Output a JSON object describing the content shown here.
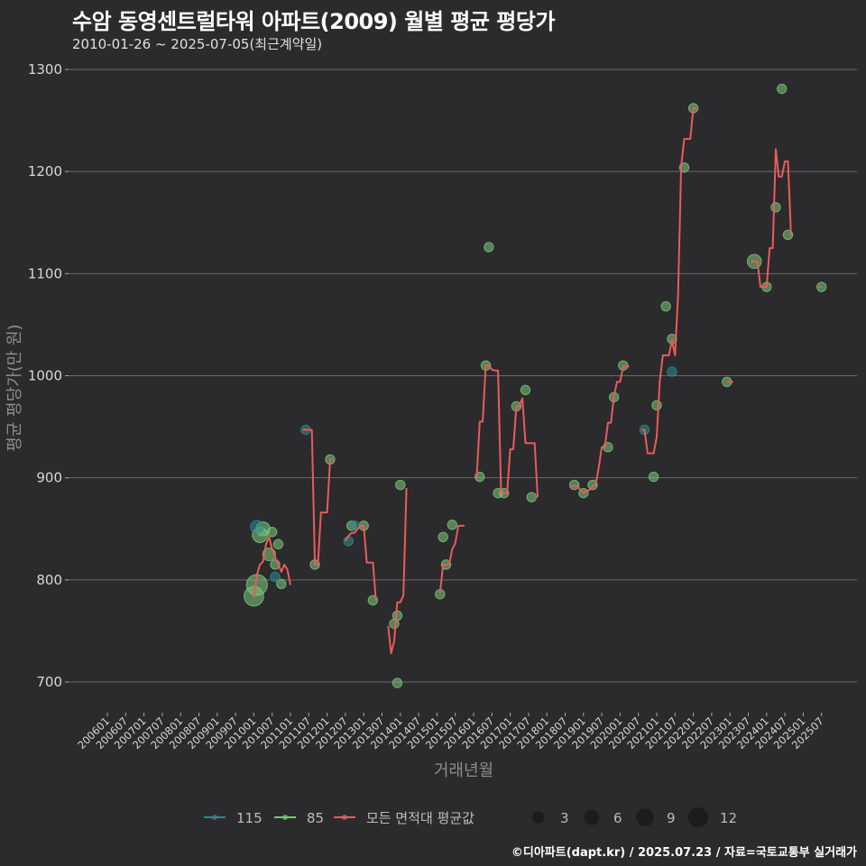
{
  "header": {
    "title": "수암 동영센트럴타워 아파트(2009) 월별 평균 평당가",
    "subtitle": "2010-01-26 ~ 2025-07-05(최근계약일)"
  },
  "caption": "©디아파트(dapt.kr) / 2025.07.23 / 자료=국토교통부 실거래가",
  "colors": {
    "background": "#2b2a2c",
    "grid": "#6a6a6a",
    "series_115": "#2e8b8b",
    "series_85": "#7cc87c",
    "avg_line": "#e85c5c"
  },
  "chart_data": {
    "type": "line",
    "title": "수암 동영센트럴타워 아파트(2009) 월별 평균 평당가",
    "subtitle": "2010-01-26 ~ 2025-07-05(최근계약일)",
    "xlabel": "거래년월",
    "ylabel": "평균 평당가(만 원)",
    "ylim": [
      690,
      1300
    ],
    "yticks": [
      700,
      800,
      900,
      1000,
      1100,
      1200,
      1300
    ],
    "grid": true,
    "legend_position": "bottom",
    "x_ticks": [
      "200601",
      "200607",
      "200701",
      "200707",
      "200801",
      "200807",
      "200901",
      "200907",
      "201001",
      "201007",
      "201101",
      "201107",
      "201201",
      "201207",
      "201301",
      "201307",
      "201401",
      "201407",
      "201501",
      "201507",
      "201601",
      "201607",
      "201701",
      "201707",
      "201801",
      "201807",
      "201901",
      "201907",
      "202001",
      "202007",
      "202101",
      "202107",
      "202201",
      "202207",
      "202301",
      "202307",
      "202401",
      "202407",
      "202501",
      "202507"
    ],
    "legend": {
      "series": [
        "115",
        "85",
        "모든 면적대 평균값"
      ],
      "size_title": "",
      "sizes": [
        3,
        6,
        9,
        12
      ]
    },
    "series": [
      {
        "name": "모든 면적대 평균값",
        "kind": "line",
        "segments": [
          [
            [
              "2010-01",
              782
            ],
            [
              "2010-02",
              805
            ],
            [
              "2010-03",
              815
            ],
            [
              "2010-04",
              818
            ],
            [
              "2010-05",
              835
            ],
            [
              "2010-06",
              842
            ],
            [
              "2010-07",
              830
            ],
            [
              "2010-08",
              822
            ],
            [
              "2010-09",
              815
            ],
            [
              "2010-10",
              808
            ],
            [
              "2010-11",
              815
            ],
            [
              "2010-12",
              810
            ],
            [
              "2011-01",
              795
            ]
          ],
          [
            [
              "2011-05",
              947
            ],
            [
              "2011-06",
              947
            ],
            [
              "2011-07",
              947
            ],
            [
              "2011-08",
              947
            ],
            [
              "2011-09",
              815
            ],
            [
              "2011-10",
              815
            ],
            [
              "2011-11",
              866
            ],
            [
              "2011-12",
              866
            ],
            [
              "2012-01",
              866
            ],
            [
              "2012-02",
              918
            ],
            [
              "2012-03",
              918
            ]
          ],
          [
            [
              "2012-07",
              838
            ],
            [
              "2012-08",
              843
            ],
            [
              "2012-09",
              846
            ],
            [
              "2012-10",
              846
            ],
            [
              "2012-11",
              850
            ],
            [
              "2012-12",
              853
            ],
            [
              "2013-01",
              853
            ],
            [
              "2013-02",
              817
            ],
            [
              "2013-03",
              817
            ],
            [
              "2013-04",
              817
            ],
            [
              "2013-05",
              780
            ]
          ],
          [
            [
              "2013-09",
              755
            ],
            [
              "2013-10",
              728
            ],
            [
              "2013-11",
              740
            ],
            [
              "2013-12",
              778
            ],
            [
              "2014-01",
              778
            ],
            [
              "2014-02",
              785
            ],
            [
              "2014-03",
              890
            ]
          ],
          [
            [
              "2015-02",
              787
            ],
            [
              "2015-03",
              815
            ],
            [
              "2015-04",
              815
            ],
            [
              "2015-05",
              815
            ],
            [
              "2015-06",
              830
            ],
            [
              "2015-07",
              836
            ],
            [
              "2015-08",
              853
            ],
            [
              "2015-09",
              853
            ],
            [
              "2015-10",
              853
            ]
          ],
          [
            [
              "2016-02",
              900
            ],
            [
              "2016-03",
              955
            ],
            [
              "2016-04",
              955
            ],
            [
              "2016-05",
              1010
            ],
            [
              "2016-06",
              1010
            ],
            [
              "2016-07",
              1006
            ],
            [
              "2016-08",
              1005
            ],
            [
              "2016-09",
              1005
            ],
            [
              "2016-10",
              885
            ],
            [
              "2016-11",
              885
            ],
            [
              "2016-12",
              885
            ],
            [
              "2017-01",
              928
            ],
            [
              "2017-02",
              928
            ],
            [
              "2017-03",
              970
            ],
            [
              "2017-04",
              970
            ],
            [
              "2017-05",
              978
            ],
            [
              "2017-06",
              934
            ],
            [
              "2017-07",
              934
            ],
            [
              "2017-08",
              934
            ],
            [
              "2017-09",
              934
            ],
            [
              "2017-10",
              881
            ]
          ],
          [
            [
              "2018-09",
              892
            ],
            [
              "2018-10",
              892
            ],
            [
              "2018-11",
              892
            ],
            [
              "2018-12",
              888
            ],
            [
              "2019-01",
              885
            ],
            [
              "2019-02",
              887
            ],
            [
              "2019-03",
              888
            ],
            [
              "2019-04",
              892
            ],
            [
              "2019-05",
              893
            ],
            [
              "2019-06",
              910
            ],
            [
              "2019-07",
              930
            ],
            [
              "2019-08",
              930
            ],
            [
              "2019-09",
              954
            ],
            [
              "2019-10",
              954
            ],
            [
              "2019-11",
              980
            ],
            [
              "2019-12",
              994
            ],
            [
              "2020-01",
              994
            ],
            [
              "2020-02",
              1009
            ],
            [
              "2020-03",
              1009
            ],
            [
              "2020-04",
              1009
            ]
          ],
          [
            [
              "2020-08",
              947
            ],
            [
              "2020-09",
              947
            ],
            [
              "2020-10",
              924
            ],
            [
              "2020-11",
              924
            ],
            [
              "2020-12",
              924
            ],
            [
              "2021-01",
              940
            ],
            [
              "2021-02",
              995
            ],
            [
              "2021-03",
              1020
            ],
            [
              "2021-04",
              1020
            ],
            [
              "2021-05",
              1020
            ],
            [
              "2021-06",
              1035
            ],
            [
              "2021-07",
              1020
            ],
            [
              "2021-08",
              1080
            ],
            [
              "2021-09",
              1205
            ],
            [
              "2021-10",
              1232
            ],
            [
              "2021-11",
              1232
            ],
            [
              "2021-12",
              1232
            ],
            [
              "2022-01",
              1262
            ],
            [
              "2022-02",
              1262
            ]
          ],
          [
            [
              "2022-12",
              994
            ],
            [
              "2023-01",
              994
            ],
            [
              "2023-02",
              994
            ]
          ],
          [
            [
              "2023-08",
              1112
            ],
            [
              "2023-09",
              1112
            ],
            [
              "2023-10",
              1112
            ],
            [
              "2023-11",
              1087
            ],
            [
              "2023-12",
              1087
            ],
            [
              "2024-01",
              1087
            ],
            [
              "2024-02",
              1125
            ],
            [
              "2024-03",
              1125
            ],
            [
              "2024-04",
              1222
            ],
            [
              "2024-05",
              1195
            ],
            [
              "2024-06",
              1195
            ],
            [
              "2024-07",
              1210
            ],
            [
              "2024-08",
              1210
            ],
            [
              "2024-09",
              1137
            ]
          ],
          [
            [
              "2025-06",
              1087
            ],
            [
              "2025-07",
              1087
            ]
          ]
        ]
      },
      {
        "name": "85",
        "kind": "scatter",
        "points": [
          {
            "x": "2010-01",
            "y": 784,
            "n": 10
          },
          {
            "x": "2010-02",
            "y": 795,
            "n": 12
          },
          {
            "x": "2010-03",
            "y": 844,
            "n": 5
          },
          {
            "x": "2010-04",
            "y": 850,
            "n": 4
          },
          {
            "x": "2010-06",
            "y": 825,
            "n": 3
          },
          {
            "x": "2010-07",
            "y": 847,
            "n": 1
          },
          {
            "x": "2010-08",
            "y": 815,
            "n": 1
          },
          {
            "x": "2010-09",
            "y": 835,
            "n": 1
          },
          {
            "x": "2010-10",
            "y": 796,
            "n": 1
          },
          {
            "x": "2011-09",
            "y": 815,
            "n": 1
          },
          {
            "x": "2012-02",
            "y": 918,
            "n": 1
          },
          {
            "x": "2012-09",
            "y": 853,
            "n": 1
          },
          {
            "x": "2013-01",
            "y": 853,
            "n": 1
          },
          {
            "x": "2013-04",
            "y": 780,
            "n": 1
          },
          {
            "x": "2013-11",
            "y": 757,
            "n": 1
          },
          {
            "x": "2013-12",
            "y": 765,
            "n": 1
          },
          {
            "x": "2014-01",
            "y": 893,
            "n": 1
          },
          {
            "x": "2013-12",
            "y": 699,
            "n": 1
          },
          {
            "x": "2015-02",
            "y": 786,
            "n": 1
          },
          {
            "x": "2015-03",
            "y": 842,
            "n": 1
          },
          {
            "x": "2015-04",
            "y": 815,
            "n": 1
          },
          {
            "x": "2015-06",
            "y": 854,
            "n": 1
          },
          {
            "x": "2016-03",
            "y": 901,
            "n": 1
          },
          {
            "x": "2016-05",
            "y": 1010,
            "n": 1
          },
          {
            "x": "2016-06",
            "y": 1126,
            "n": 1
          },
          {
            "x": "2016-09",
            "y": 885,
            "n": 1
          },
          {
            "x": "2016-11",
            "y": 885,
            "n": 1
          },
          {
            "x": "2017-03",
            "y": 970,
            "n": 1
          },
          {
            "x": "2017-06",
            "y": 986,
            "n": 1
          },
          {
            "x": "2017-08",
            "y": 881,
            "n": 1
          },
          {
            "x": "2018-10",
            "y": 893,
            "n": 1
          },
          {
            "x": "2019-01",
            "y": 885,
            "n": 1
          },
          {
            "x": "2019-04",
            "y": 893,
            "n": 1
          },
          {
            "x": "2019-09",
            "y": 930,
            "n": 1
          },
          {
            "x": "2019-11",
            "y": 979,
            "n": 1
          },
          {
            "x": "2020-02",
            "y": 1010,
            "n": 1
          },
          {
            "x": "2020-12",
            "y": 901,
            "n": 1
          },
          {
            "x": "2021-01",
            "y": 971,
            "n": 1
          },
          {
            "x": "2021-04",
            "y": 1068,
            "n": 1
          },
          {
            "x": "2021-06",
            "y": 1036,
            "n": 1
          },
          {
            "x": "2021-10",
            "y": 1204,
            "n": 1
          },
          {
            "x": "2022-01",
            "y": 1262,
            "n": 1
          },
          {
            "x": "2022-12",
            "y": 994,
            "n": 1
          },
          {
            "x": "2023-09",
            "y": 1112,
            "n": 4
          },
          {
            "x": "2024-01",
            "y": 1087,
            "n": 1
          },
          {
            "x": "2024-04",
            "y": 1165,
            "n": 1
          },
          {
            "x": "2024-06",
            "y": 1281,
            "n": 1
          },
          {
            "x": "2024-08",
            "y": 1138,
            "n": 1
          },
          {
            "x": "2025-07",
            "y": 1087,
            "n": 1
          }
        ]
      },
      {
        "name": "115",
        "kind": "scatter",
        "points": [
          {
            "x": "2010-02",
            "y": 852,
            "n": 3
          },
          {
            "x": "2010-08",
            "y": 803,
            "n": 1
          },
          {
            "x": "2011-06",
            "y": 947,
            "n": 1
          },
          {
            "x": "2012-08",
            "y": 838,
            "n": 1
          },
          {
            "x": "2012-10",
            "y": 853,
            "n": 1
          },
          {
            "x": "2020-09",
            "y": 947,
            "n": 1
          },
          {
            "x": "2021-06",
            "y": 1004,
            "n": 1
          }
        ]
      }
    ]
  }
}
